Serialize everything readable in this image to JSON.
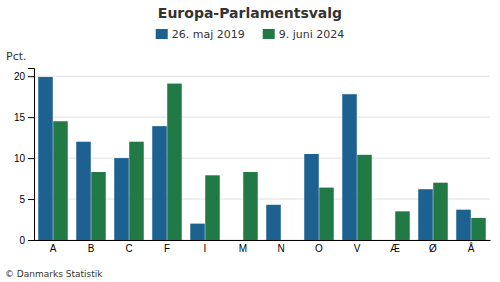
{
  "chart_data": {
    "type": "bar",
    "title": "Europa-Parlamentsvalg",
    "categories": [
      "A",
      "B",
      "C",
      "F",
      "I",
      "M",
      "N",
      "O",
      "V",
      "Æ",
      "Ø",
      "Å"
    ],
    "series": [
      {
        "name": "26. maj 2019",
        "color": "#1c6190",
        "values": [
          19.9,
          12.0,
          10.0,
          13.9,
          2.0,
          0,
          4.3,
          10.5,
          17.8,
          0,
          6.2,
          3.7
        ]
      },
      {
        "name": "9. juni 2024",
        "color": "#217a45",
        "values": [
          14.5,
          8.3,
          12.0,
          19.1,
          7.9,
          8.3,
          0,
          6.4,
          10.4,
          3.5,
          7.0,
          2.7
        ]
      }
    ],
    "ylabel": "Pct.",
    "ylim": [
      0,
      21
    ],
    "yticks": [
      0,
      5,
      10,
      15,
      20
    ],
    "grid": true,
    "legend": "top",
    "annotations": [
      "© Danmarks Statistik"
    ]
  }
}
